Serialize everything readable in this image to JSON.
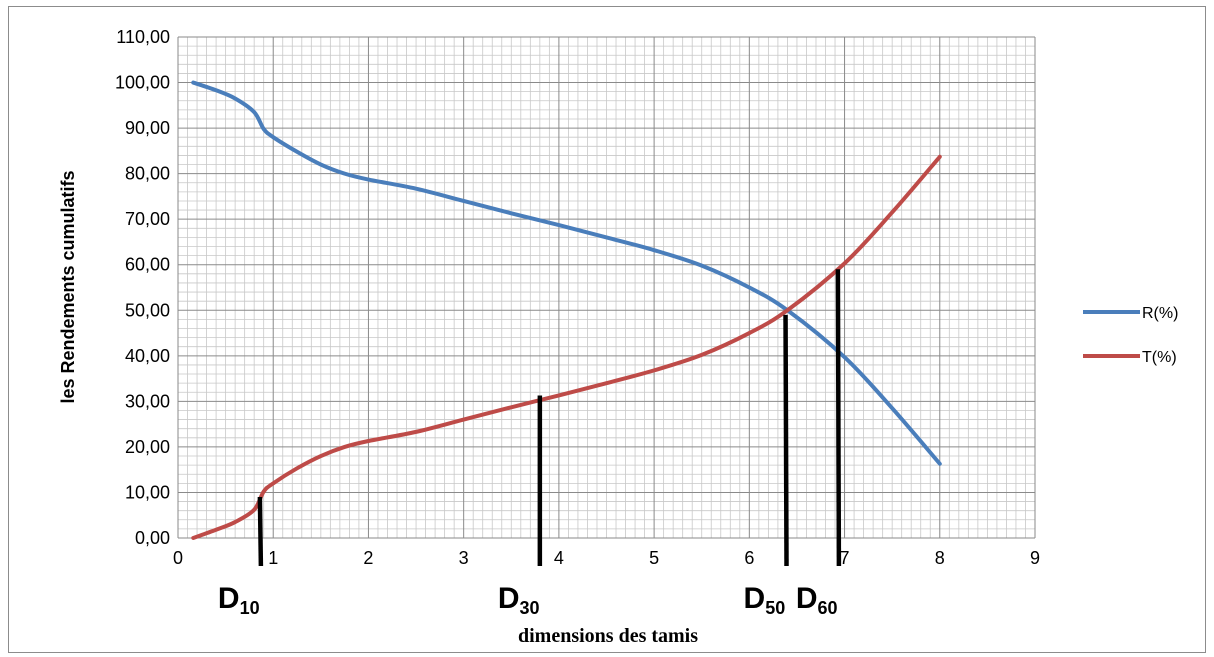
{
  "chart_data": {
    "type": "line",
    "xlabel": "dimensions des tamis",
    "ylabel": "les Rendements cumulatifs",
    "xlim": [
      0,
      9
    ],
    "ylim": [
      0,
      110
    ],
    "x_ticks": [
      "0",
      "1",
      "2",
      "3",
      "4",
      "5",
      "6",
      "7",
      "8",
      "9"
    ],
    "y_ticks": [
      "0,00",
      "10,00",
      "20,00",
      "30,00",
      "40,00",
      "50,00",
      "60,00",
      "70,00",
      "80,00",
      "90,00",
      "100,00",
      "110,00"
    ],
    "grid": "major and minor",
    "legend_position": "right",
    "series": [
      {
        "name": "R(%)",
        "color": "#4a7ebb",
        "points": [
          [
            0.16,
            100
          ],
          [
            0.4,
            98.3
          ],
          [
            0.6,
            96.5
          ],
          [
            0.8,
            93.5
          ],
          [
            0.9,
            89.8
          ],
          [
            1.0,
            88.0
          ],
          [
            1.25,
            84.8
          ],
          [
            1.5,
            82.0
          ],
          [
            1.75,
            80.0
          ],
          [
            2.0,
            78.7
          ],
          [
            2.5,
            76.7
          ],
          [
            3.0,
            74.0
          ],
          [
            3.5,
            71.3
          ],
          [
            4.0,
            68.7
          ],
          [
            4.5,
            66.0
          ],
          [
            5.0,
            63.2
          ],
          [
            5.5,
            59.8
          ],
          [
            6.0,
            55.0
          ],
          [
            6.4,
            50.0
          ],
          [
            7.0,
            39.7
          ],
          [
            7.5,
            28.5
          ],
          [
            8.0,
            16.3
          ]
        ]
      },
      {
        "name": "T(%)",
        "color": "#be4b48",
        "points": [
          [
            0.16,
            0
          ],
          [
            0.4,
            1.8
          ],
          [
            0.6,
            3.5
          ],
          [
            0.8,
            6.2
          ],
          [
            0.9,
            10.2
          ],
          [
            1.0,
            12.0
          ],
          [
            1.25,
            15.3
          ],
          [
            1.5,
            18.0
          ],
          [
            1.75,
            20.0
          ],
          [
            2.0,
            21.3
          ],
          [
            2.5,
            23.3
          ],
          [
            3.0,
            26.0
          ],
          [
            3.5,
            28.7
          ],
          [
            4.0,
            31.3
          ],
          [
            4.5,
            34.0
          ],
          [
            5.0,
            36.8
          ],
          [
            5.5,
            40.2
          ],
          [
            6.0,
            45.0
          ],
          [
            6.4,
            50.0
          ],
          [
            7.0,
            60.3
          ],
          [
            7.5,
            71.5
          ],
          [
            8.0,
            83.7
          ]
        ]
      }
    ],
    "markers": [
      {
        "label": "D",
        "sub": "10",
        "x": 0.86,
        "y_top": 9
      },
      {
        "label": "D",
        "sub": "30",
        "x": 3.8,
        "y_top": 31.3
      },
      {
        "label": "D",
        "sub": "50",
        "x": 6.38,
        "y_top": 49
      },
      {
        "label": "D",
        "sub": "60",
        "x": 6.93,
        "y_top": 59
      }
    ]
  }
}
